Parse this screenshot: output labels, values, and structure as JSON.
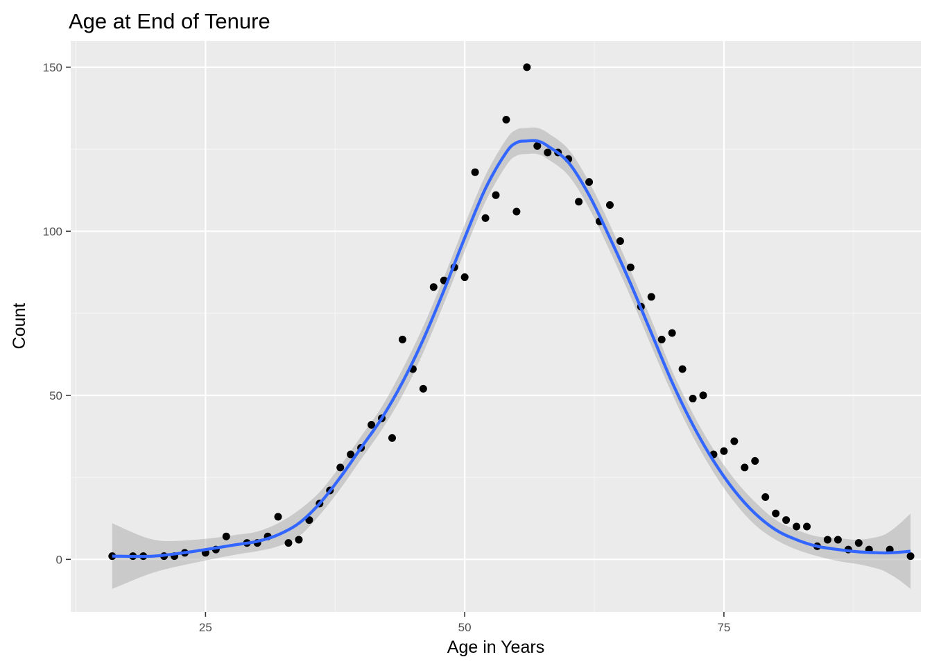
{
  "chart_data": {
    "type": "scatter",
    "title": "Age at End of Tenure",
    "xlabel": "Age in Years",
    "ylabel": "Count",
    "xlim": [
      12,
      94
    ],
    "ylim": [
      -16,
      158
    ],
    "x_ticks": [
      25,
      50,
      75
    ],
    "y_ticks": [
      0,
      50,
      100,
      150
    ],
    "grid": true,
    "legend": "none",
    "points": [
      {
        "x": 16,
        "y": 1
      },
      {
        "x": 18,
        "y": 1
      },
      {
        "x": 19,
        "y": 1
      },
      {
        "x": 21,
        "y": 1
      },
      {
        "x": 22,
        "y": 1
      },
      {
        "x": 23,
        "y": 2
      },
      {
        "x": 25,
        "y": 2
      },
      {
        "x": 26,
        "y": 3
      },
      {
        "x": 27,
        "y": 7
      },
      {
        "x": 29,
        "y": 5
      },
      {
        "x": 30,
        "y": 5
      },
      {
        "x": 31,
        "y": 7
      },
      {
        "x": 32,
        "y": 13
      },
      {
        "x": 33,
        "y": 5
      },
      {
        "x": 34,
        "y": 6
      },
      {
        "x": 35,
        "y": 12
      },
      {
        "x": 36,
        "y": 17
      },
      {
        "x": 37,
        "y": 21
      },
      {
        "x": 38,
        "y": 28
      },
      {
        "x": 39,
        "y": 32
      },
      {
        "x": 40,
        "y": 34
      },
      {
        "x": 41,
        "y": 41
      },
      {
        "x": 42,
        "y": 43
      },
      {
        "x": 43,
        "y": 37
      },
      {
        "x": 44,
        "y": 67
      },
      {
        "x": 45,
        "y": 58
      },
      {
        "x": 46,
        "y": 52
      },
      {
        "x": 47,
        "y": 83
      },
      {
        "x": 48,
        "y": 85
      },
      {
        "x": 49,
        "y": 89
      },
      {
        "x": 50,
        "y": 86
      },
      {
        "x": 51,
        "y": 118
      },
      {
        "x": 52,
        "y": 104
      },
      {
        "x": 53,
        "y": 111
      },
      {
        "x": 54,
        "y": 134
      },
      {
        "x": 55,
        "y": 106
      },
      {
        "x": 56,
        "y": 150
      },
      {
        "x": 57,
        "y": 126
      },
      {
        "x": 58,
        "y": 124
      },
      {
        "x": 59,
        "y": 124
      },
      {
        "x": 60,
        "y": 122
      },
      {
        "x": 61,
        "y": 109
      },
      {
        "x": 62,
        "y": 115
      },
      {
        "x": 63,
        "y": 103
      },
      {
        "x": 64,
        "y": 108
      },
      {
        "x": 65,
        "y": 97
      },
      {
        "x": 66,
        "y": 89
      },
      {
        "x": 67,
        "y": 77
      },
      {
        "x": 68,
        "y": 80
      },
      {
        "x": 69,
        "y": 67
      },
      {
        "x": 70,
        "y": 69
      },
      {
        "x": 71,
        "y": 58
      },
      {
        "x": 72,
        "y": 49
      },
      {
        "x": 73,
        "y": 50
      },
      {
        "x": 74,
        "y": 32
      },
      {
        "x": 75,
        "y": 33
      },
      {
        "x": 76,
        "y": 36
      },
      {
        "x": 77,
        "y": 28
      },
      {
        "x": 78,
        "y": 30
      },
      {
        "x": 79,
        "y": 19
      },
      {
        "x": 80,
        "y": 14
      },
      {
        "x": 81,
        "y": 12
      },
      {
        "x": 82,
        "y": 10
      },
      {
        "x": 83,
        "y": 10
      },
      {
        "x": 84,
        "y": 4
      },
      {
        "x": 85,
        "y": 6
      },
      {
        "x": 86,
        "y": 6
      },
      {
        "x": 87,
        "y": 3
      },
      {
        "x": 88,
        "y": 5
      },
      {
        "x": 89,
        "y": 3
      },
      {
        "x": 91,
        "y": 3
      },
      {
        "x": 93,
        "y": 1
      }
    ],
    "smooth": {
      "x": [
        16,
        20,
        24,
        28,
        30,
        32,
        34,
        36,
        38,
        40,
        42,
        44,
        46,
        48,
        50,
        52,
        54,
        55,
        56,
        57,
        58,
        60,
        62,
        64,
        66,
        68,
        70,
        72,
        74,
        76,
        78,
        80,
        82,
        84,
        86,
        88,
        90,
        91,
        92,
        93
      ],
      "y": [
        1,
        1,
        2.5,
        4.5,
        5.5,
        7.5,
        11,
        17,
        25,
        34,
        43,
        54,
        67,
        82,
        98,
        113,
        124,
        127,
        127.5,
        127.5,
        126,
        121,
        111,
        98,
        84,
        69,
        54,
        41,
        30,
        21,
        14,
        9,
        6,
        4,
        3,
        2.3,
        2,
        2,
        2.2,
        2.5
      ],
      "lower": [
        -9,
        -4,
        -1,
        1.5,
        2.5,
        4,
        7,
        13.5,
        21.5,
        30.5,
        39.5,
        50,
        63,
        78,
        94,
        109,
        120,
        123,
        123.5,
        123.5,
        122,
        117,
        107,
        94,
        80,
        65,
        50.5,
        37.5,
        26.5,
        17.5,
        10.5,
        6,
        3,
        1,
        -0.5,
        -1.5,
        -3,
        -4.5,
        -6.5,
        -9
      ],
      "upper": [
        11,
        6,
        6,
        7.5,
        8.5,
        11,
        15,
        20.5,
        28.5,
        37.5,
        46.5,
        58,
        71,
        86,
        102,
        117,
        128,
        131,
        131.5,
        131.5,
        130,
        125,
        115,
        102,
        88,
        73,
        57.5,
        44.5,
        33.5,
        24.5,
        17.5,
        12,
        9,
        7,
        6.5,
        6,
        7,
        8.5,
        11,
        14
      ]
    },
    "colors": {
      "panel": "#ebebeb",
      "grid_major": "#ffffff",
      "grid_minor": "#f5f5f5",
      "points": "#000000",
      "smooth_line": "#3366ff",
      "ribbon": "#999999",
      "ticks": "#333333"
    }
  }
}
